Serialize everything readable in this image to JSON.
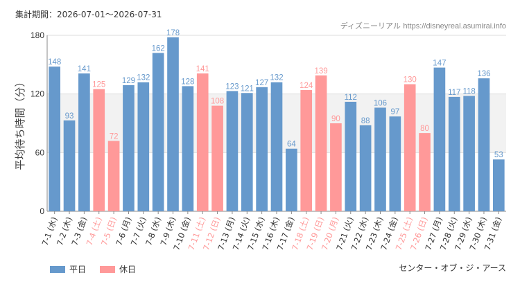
{
  "header": {
    "period_label": "集計期間：2026-07-01～2026-07-31",
    "credit_name": "ディズニーリアル",
    "credit_url": "https://disneyreal.asumirai.info"
  },
  "attraction": "センター・オブ・ジ・アース",
  "colors": {
    "weekday": "#6699cc",
    "holiday": "#ff9999",
    "band": "#f2f2f2",
    "grid": "#dddddd"
  },
  "chart_data": {
    "type": "bar",
    "ylabel": "平均待ち時間（分）",
    "ylim": [
      0,
      180
    ],
    "yticks": [
      0,
      60,
      120,
      180
    ],
    "categories": [
      "7-1 (水)",
      "7-2 (木)",
      "7-3 (金)",
      "7-4 (土)",
      "7-5 (日)",
      "7-6 (月)",
      "7-7 (火)",
      "7-8 (水)",
      "7-9 (木)",
      "7-10 (金)",
      "7-11 (土)",
      "7-12 (日)",
      "7-13 (月)",
      "7-14 (火)",
      "7-15 (水)",
      "7-16 (木)",
      "7-17 (金)",
      "7-18 (土)",
      "7-19 (日)",
      "7-20 (月)",
      "7-21 (火)",
      "7-22 (水)",
      "7-23 (木)",
      "7-24 (金)",
      "7-25 (土)",
      "7-26 (日)",
      "7-27 (月)",
      "7-28 (火)",
      "7-29 (水)",
      "7-30 (木)",
      "7-31 (金)"
    ],
    "values": [
      148,
      93,
      141,
      125,
      72,
      129,
      132,
      162,
      178,
      128,
      141,
      108,
      123,
      121,
      127,
      132,
      64,
      124,
      139,
      90,
      112,
      88,
      106,
      97,
      130,
      80,
      147,
      117,
      118,
      136,
      53
    ],
    "day_type": [
      "平日",
      "平日",
      "平日",
      "休日",
      "休日",
      "平日",
      "平日",
      "平日",
      "平日",
      "平日",
      "休日",
      "休日",
      "平日",
      "平日",
      "平日",
      "平日",
      "平日",
      "休日",
      "休日",
      "休日",
      "平日",
      "平日",
      "平日",
      "平日",
      "休日",
      "休日",
      "平日",
      "平日",
      "平日",
      "平日",
      "平日"
    ],
    "legend": [
      {
        "name": "平日",
        "color": "#6699cc"
      },
      {
        "name": "休日",
        "color": "#ff9999"
      }
    ],
    "legend_position": "bottom-left",
    "grid": true
  }
}
